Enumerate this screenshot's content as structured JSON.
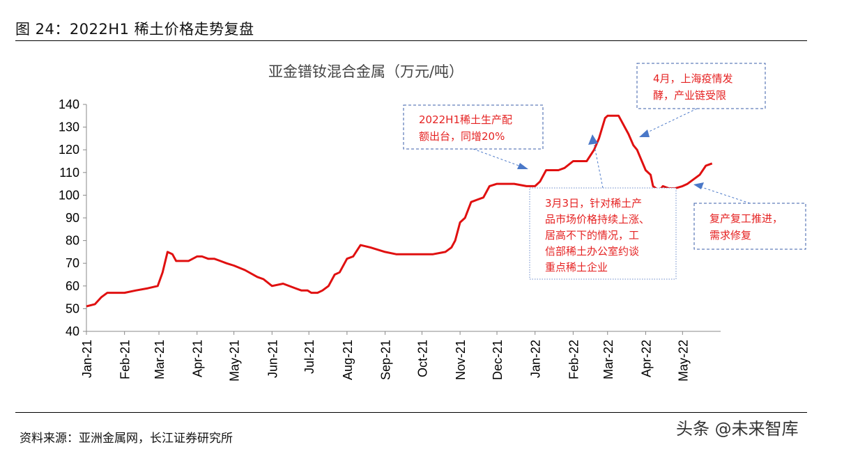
{
  "figure": {
    "title": "图 24：2022H1 稀土价格走势复盘",
    "source": "资料来源：亚洲金属网，长江证券研究所",
    "watermark": "头条 @未来智库"
  },
  "colors": {
    "line": "#e01010",
    "annotation_text": "#e52222",
    "annotation_border": "#3a5ca8",
    "arrow": "#4a78c8"
  },
  "chart_data": {
    "type": "line",
    "title": "亚金镨钕混合金属（万元/吨）",
    "xlabel": "",
    "ylabel": "",
    "ylim": [
      40,
      140
    ],
    "yticks": [
      40,
      50,
      60,
      70,
      80,
      90,
      100,
      110,
      120,
      130,
      140
    ],
    "x_tick_labels": [
      "Jan-21",
      "Feb-21",
      "Mar-21",
      "Apr-21",
      "May-21",
      "Jun-21",
      "Jul-21",
      "Aug-21",
      "Sep-21",
      "Oct-21",
      "Nov-21",
      "Dec-21",
      "Jan-22",
      "Feb-22",
      "Mar-22",
      "Apr-22",
      "May-22"
    ],
    "grid": false,
    "legend": "none",
    "series": [
      {
        "x": [
          "2021-01-01",
          "2021-01-08",
          "2021-01-13",
          "2021-01-18",
          "2021-01-25",
          "2021-02-01",
          "2021-02-10",
          "2021-02-20",
          "2021-02-28",
          "2021-03-04",
          "2021-03-08",
          "2021-03-12",
          "2021-03-15",
          "2021-03-20",
          "2021-03-25",
          "2021-04-01",
          "2021-04-05",
          "2021-04-10",
          "2021-04-15",
          "2021-04-20",
          "2021-04-25",
          "2021-05-01",
          "2021-05-10",
          "2021-05-20",
          "2021-05-25",
          "2021-06-01",
          "2021-06-10",
          "2021-06-20",
          "2021-06-25",
          "2021-06-30",
          "2021-07-03",
          "2021-07-08",
          "2021-07-12",
          "2021-07-17",
          "2021-07-22",
          "2021-07-26",
          "2021-08-01",
          "2021-08-06",
          "2021-08-12",
          "2021-08-20",
          "2021-09-01",
          "2021-09-10",
          "2021-09-20",
          "2021-10-01",
          "2021-10-10",
          "2021-10-20",
          "2021-10-25",
          "2021-10-28",
          "2021-11-01",
          "2021-11-05",
          "2021-11-10",
          "2021-11-15",
          "2021-11-20",
          "2021-11-25",
          "2021-12-01",
          "2021-12-05",
          "2021-12-15",
          "2021-12-25",
          "2022-01-01",
          "2022-01-05",
          "2022-01-10",
          "2022-01-20",
          "2022-01-25",
          "2022-02-01",
          "2022-02-07",
          "2022-02-12",
          "2022-02-18",
          "2022-02-22",
          "2022-02-27",
          "2022-03-01",
          "2022-03-03",
          "2022-03-05",
          "2022-03-10",
          "2022-03-15",
          "2022-03-18",
          "2022-03-22",
          "2022-03-25",
          "2022-04-01",
          "2022-04-05",
          "2022-04-07",
          "2022-04-12",
          "2022-04-15",
          "2022-04-20",
          "2022-04-25",
          "2022-05-01",
          "2022-05-05",
          "2022-05-10",
          "2022-05-15",
          "2022-05-20",
          "2022-05-25"
        ],
        "y": [
          51,
          52,
          55,
          57,
          57,
          57,
          58,
          59,
          60,
          66,
          75,
          74,
          71,
          71,
          71,
          73,
          73,
          72,
          72,
          71,
          70,
          69,
          67,
          64,
          63,
          60,
          61,
          59,
          58,
          58,
          57,
          57,
          58,
          60,
          65,
          66,
          72,
          73,
          78,
          77,
          75,
          74,
          74,
          74,
          74,
          75,
          77,
          80,
          88,
          90,
          97,
          98,
          99,
          104,
          105,
          105,
          105,
          104,
          104,
          106,
          111,
          111,
          112,
          115,
          115,
          115,
          120,
          125,
          134,
          135,
          135,
          135,
          135,
          130,
          127,
          122,
          120,
          111,
          109,
          104,
          102,
          104,
          103,
          103,
          104,
          105,
          107,
          109,
          113,
          114
        ]
      }
    ],
    "annotations": [
      "2022H1稀土生产配额出台，同增20%",
      "4月，上海疫情发酵，产业链受限",
      "3月3日，针对稀土产品市场价格持续上涨、居高不下的情况，工信部稀土办公室约谈重点稀土企业",
      "复产复工推进，需求修复"
    ]
  },
  "annotation_lines": {
    "quota": [
      "2022H1稀土生产配",
      "额出台，同增20%"
    ],
    "shanghai": [
      "4月，上海疫情发",
      "酵，产业链受限"
    ],
    "miit": [
      "3月3日，针对稀土产",
      "品市场价格持续上涨、",
      "居高不下的情况，工",
      "信部稀土办公室约谈",
      "重点稀土企业"
    ],
    "recovery": [
      "复产复工推进，",
      "需求修复"
    ]
  }
}
